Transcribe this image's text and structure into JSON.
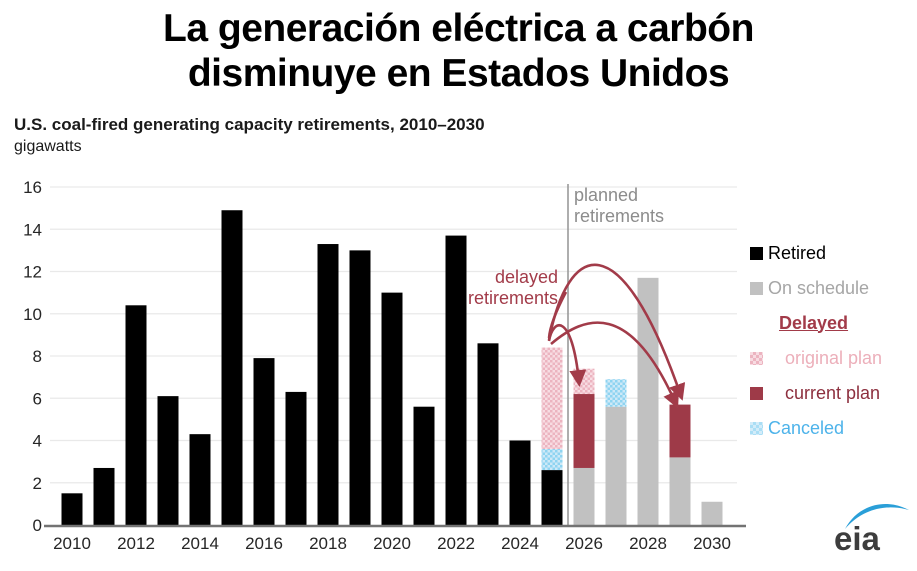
{
  "header": {
    "title_line1": "La generación eléctrica a carbón",
    "title_line2": "disminuye en Estados Unidos"
  },
  "annotations": {
    "planned": [
      "planned",
      "retirements"
    ],
    "delayed": [
      "delayed",
      "retirements"
    ]
  },
  "legend": {
    "items": [
      {
        "label": "Retired",
        "swatch": "solid",
        "color": "#000000",
        "text_color": "#000000"
      },
      {
        "label": "On schedule",
        "swatch": "solid",
        "color": "#c1c1c1",
        "text_color": "#a6a6a6"
      },
      {
        "label": "Delayed",
        "swatch": "none",
        "text_color": "#a23b49",
        "underline": true
      },
      {
        "label": "original plan",
        "swatch": "checker",
        "color": "#f7dce2",
        "color2": "#ecb4c0",
        "text_color": "#ecafba",
        "indent": true
      },
      {
        "label": "current plan",
        "swatch": "solid",
        "color": "#9e3a48",
        "text_color": "#8d2f3e",
        "indent": true
      },
      {
        "label": "Canceled",
        "swatch": "checker",
        "color": "#d3ecf9",
        "color2": "#aadef5",
        "text_color": "#4db3ea"
      }
    ]
  },
  "logo": {
    "text": "eia"
  },
  "colors": {
    "accent_red": "#a23b49",
    "grid": "#e9e9e9",
    "axis": "#737373",
    "divider": "#9a9a9a",
    "tick_text": "#262626",
    "gray_text": "#8c8c8c",
    "logo_blue": "#2a9fd8",
    "logo_text": "#3d3d3d"
  },
  "chart_data": {
    "type": "bar",
    "stacked": true,
    "title": "U.S. coal-fired generating capacity retirements, 2010–2030",
    "ylabel": "gigawatts",
    "xlabel": "",
    "grid": true,
    "legend_position": "right",
    "ylim": [
      0,
      16
    ],
    "yticks": [
      0,
      2,
      4,
      6,
      8,
      10,
      12,
      14,
      16
    ],
    "x": [
      2010,
      2011,
      2012,
      2013,
      2014,
      2015,
      2016,
      2017,
      2018,
      2019,
      2020,
      2021,
      2022,
      2023,
      2024,
      2025,
      2026,
      2027,
      2028,
      2029,
      2030
    ],
    "xtick_labels": [
      2010,
      2012,
      2014,
      2016,
      2018,
      2020,
      2022,
      2024,
      2026,
      2028,
      2030
    ],
    "divider_after_year": 2025,
    "series": [
      {
        "name": "Retired",
        "fill": "solid",
        "color": "#000000",
        "values": [
          1.5,
          2.7,
          10.4,
          6.1,
          4.3,
          14.9,
          7.9,
          6.3,
          13.3,
          13.0,
          11.0,
          5.6,
          13.7,
          8.6,
          4.0,
          2.6,
          0,
          0,
          0,
          0,
          0
        ]
      },
      {
        "name": "On schedule",
        "fill": "solid",
        "color": "#c1c1c1",
        "values": [
          0,
          0,
          0,
          0,
          0,
          0,
          0,
          0,
          0,
          0,
          0,
          0,
          0,
          0,
          0,
          0,
          2.7,
          5.6,
          11.7,
          3.2,
          1.1
        ]
      },
      {
        "name": "Canceled",
        "fill": "checker",
        "color": "#cde9f7",
        "color2": "#8ed4f1",
        "values": [
          0,
          0,
          0,
          0,
          0,
          0,
          0,
          0,
          0,
          0,
          0,
          0,
          0,
          0,
          0,
          1.0,
          0,
          1.3,
          0,
          0,
          0
        ]
      },
      {
        "name": "Delayed - current plan",
        "fill": "solid",
        "color": "#9e3a48",
        "values": [
          0,
          0,
          0,
          0,
          0,
          0,
          0,
          0,
          0,
          0,
          0,
          0,
          0,
          0,
          0,
          0,
          3.5,
          0,
          0,
          2.5,
          0
        ]
      },
      {
        "name": "Delayed - original plan",
        "fill": "checker",
        "color": "#f7dce2",
        "color2": "#ecb4c0",
        "values": [
          0,
          0,
          0,
          0,
          0,
          0,
          0,
          0,
          0,
          0,
          0,
          0,
          0,
          0,
          0,
          4.8,
          1.2,
          0,
          0,
          0,
          0
        ]
      }
    ]
  }
}
